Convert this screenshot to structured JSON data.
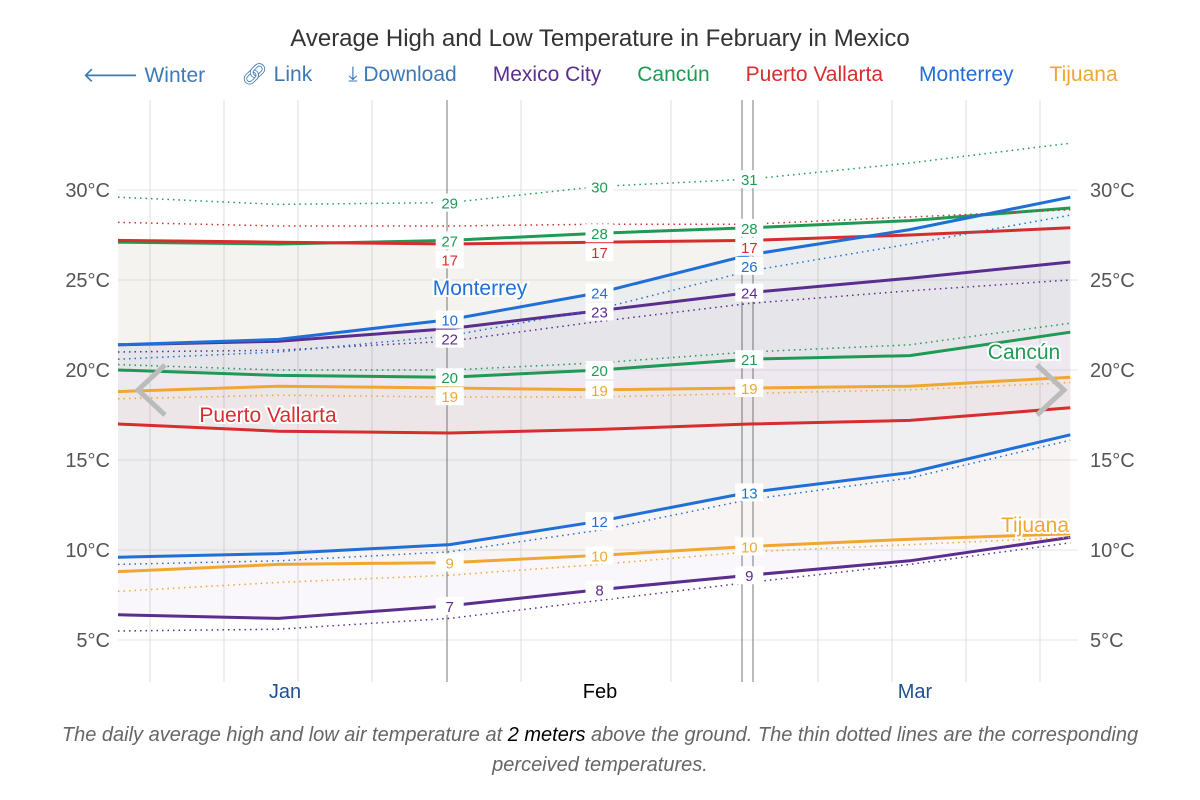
{
  "header": {
    "title": "Average High and Low Temperature in February in Mexico"
  },
  "toolbar": {
    "winter": "Winter",
    "link": "Link",
    "download": "Download"
  },
  "caption": {
    "part1": "The daily average high and low air temperature at ",
    "bold": "2 meters",
    "part2": " above the ground. The thin dotted lines are the corresponding perceived temperatures."
  },
  "chart_data": {
    "type": "line",
    "title": "Average High and Low Temperature in February in Mexico",
    "x": [
      "Jan 1",
      "Jan 16",
      "Feb 1",
      "Feb 15",
      "Mar 1",
      "Mar 16",
      "Mar 31"
    ],
    "x_tick_labels": [
      "Jan",
      "Feb",
      "Mar"
    ],
    "y_tick_labels": [
      "5°C",
      "10°C",
      "15°C",
      "20°C",
      "25°C",
      "30°C"
    ],
    "ylim": [
      3,
      33
    ],
    "grid": true,
    "legend": "top",
    "series": [
      {
        "name": "Mexico City",
        "color": "#5b2d8e",
        "label_offset": "",
        "high": [
          21.4,
          21.6,
          22.3,
          23.3,
          24.3,
          25.1,
          26.0
        ],
        "low": [
          6.4,
          6.2,
          6.9,
          7.8,
          8.6,
          9.4,
          10.7
        ],
        "feels_high": [
          21.0,
          21.1,
          21.6,
          22.7,
          23.7,
          24.4,
          25.0
        ],
        "feels_low": [
          5.5,
          5.6,
          6.2,
          7.2,
          8.2,
          9.2,
          10.4
        ]
      },
      {
        "name": "Cancún",
        "color": "#1f9a55",
        "high": [
          27.1,
          27.0,
          27.2,
          27.6,
          27.9,
          28.3,
          29.0
        ],
        "low": [
          20.0,
          19.7,
          19.6,
          20.0,
          20.6,
          20.8,
          22.1
        ],
        "feels_high": [
          29.6,
          29.2,
          29.3,
          30.2,
          30.6,
          31.5,
          32.6
        ],
        "feels_low": [
          20.3,
          20.0,
          20.0,
          20.4,
          21.0,
          21.4,
          22.6
        ]
      },
      {
        "name": "Puerto Vallarta",
        "color": "#d62e2e",
        "high": [
          27.2,
          27.1,
          27.0,
          27.1,
          27.2,
          27.5,
          27.9
        ],
        "low": [
          17.0,
          16.6,
          16.5,
          16.7,
          17.0,
          17.2,
          17.9
        ],
        "feels_high": [
          28.2,
          28.0,
          28.0,
          28.1,
          28.1,
          28.5,
          28.9
        ],
        "feels_low": []
      },
      {
        "name": "Monterrey",
        "color": "#1f6fd6",
        "high": [
          21.4,
          21.7,
          22.8,
          24.3,
          26.4,
          27.8,
          29.6
        ],
        "low": [
          9.6,
          9.8,
          10.3,
          11.6,
          13.2,
          14.3,
          16.4
        ],
        "feels_high": [
          20.6,
          21.0,
          21.9,
          23.4,
          25.5,
          27.0,
          28.6
        ],
        "feels_low": [
          9.2,
          9.4,
          9.9,
          11.1,
          12.8,
          14.0,
          16.1
        ]
      },
      {
        "name": "Tijuana",
        "color": "#f0a732",
        "high": [
          18.8,
          19.1,
          19.0,
          18.9,
          19.0,
          19.1,
          19.6
        ],
        "low": [
          8.8,
          9.2,
          9.3,
          9.7,
          10.2,
          10.6,
          10.9
        ],
        "feels_high": [
          18.4,
          18.6,
          18.5,
          18.5,
          18.7,
          18.9,
          19.3
        ],
        "feels_low": [
          7.7,
          8.2,
          8.6,
          9.2,
          9.9,
          10.3,
          10.7
        ]
      }
    ],
    "point_labels": {
      "Feb 1": {
        "Mexico City": [
          22,
          7
        ],
        "Cancún": [
          27,
          20
        ],
        "Cancún feels": [
          29
        ],
        "Puerto Vallarta": [
          17
        ],
        "Monterrey": [
          10
        ],
        "Tijuana": [
          19,
          9
        ]
      },
      "Feb 15": {
        "Mexico City": [
          23,
          8
        ],
        "Cancún": [
          28,
          20
        ],
        "Cancún feels": [
          30
        ],
        "Puerto Vallarta": [
          17
        ],
        "Monterrey": [
          24,
          12
        ],
        "Tijuana": [
          19,
          10
        ]
      },
      "Mar 1": {
        "Mexico City": [
          24,
          9
        ],
        "Cancún": [
          28,
          21
        ],
        "Cancún feels": [
          31
        ],
        "Puerto Vallarta": [
          17
        ],
        "Monterrey": [
          26,
          13
        ],
        "Tijuana": [
          19,
          10
        ]
      }
    },
    "annotations": [
      "Monterrey",
      "Puerto Vallarta",
      "Cancún",
      "Tijuana"
    ]
  }
}
